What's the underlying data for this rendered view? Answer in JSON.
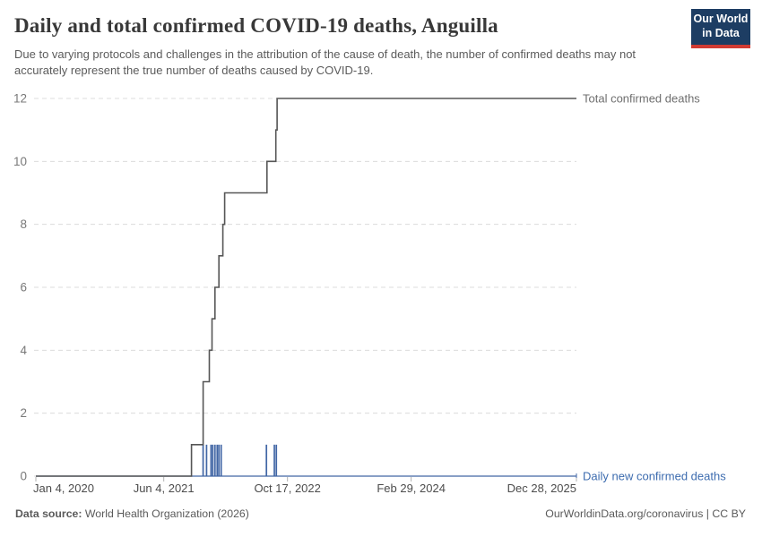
{
  "header": {
    "title": "Daily and total confirmed COVID-19 deaths, Anguilla",
    "subtitle": "Due to varying protocols and challenges in the attribution of the cause of death, the number of confirmed deaths may not accurately represent the true number of deaths caused by COVID-19.",
    "logo": {
      "line1": "Our World",
      "line2": "in Data",
      "bg_color": "#1d3d63",
      "accent_color": "#d13b33"
    }
  },
  "chart_data": {
    "type": "line",
    "x_domain": [
      "2020-01-04",
      "2025-12-28"
    ],
    "ylim": [
      0,
      12
    ],
    "y_ticks": [
      0,
      2,
      4,
      6,
      8,
      10,
      12
    ],
    "grid": "dashed",
    "legend_position": "end-of-line-labels",
    "x_ticks": [
      {
        "label": "Jan 4, 2020",
        "date": "2020-01-04",
        "anchor": "start"
      },
      {
        "label": "Jun 4, 2021",
        "date": "2021-06-04",
        "anchor": "middle"
      },
      {
        "label": "Oct 17, 2022",
        "date": "2022-10-17",
        "anchor": "middle"
      },
      {
        "label": "Feb 29, 2024",
        "date": "2024-02-29",
        "anchor": "middle"
      },
      {
        "label": "Dec 28, 2025",
        "date": "2025-12-28",
        "anchor": "end"
      }
    ],
    "series": [
      {
        "name": "Total confirmed deaths",
        "type": "step",
        "color": "#565656",
        "label_color": "#6e6e6e",
        "points": [
          [
            "2020-01-04",
            0
          ],
          [
            "2021-09-24",
            1
          ],
          [
            "2021-11-10",
            3
          ],
          [
            "2021-12-05",
            4
          ],
          [
            "2021-12-16",
            5
          ],
          [
            "2021-12-28",
            6
          ],
          [
            "2022-01-13",
            7
          ],
          [
            "2022-01-29",
            8
          ],
          [
            "2022-02-05",
            9
          ],
          [
            "2022-07-26",
            10
          ],
          [
            "2022-08-31",
            11
          ],
          [
            "2022-09-05",
            12
          ],
          [
            "2025-12-28",
            12
          ]
        ]
      },
      {
        "name": "Daily new confirmed deaths",
        "type": "spike",
        "color": "#4166a5",
        "label_color": "#3d6caf",
        "spikes": [
          [
            "2021-11-10",
            1
          ],
          [
            "2021-11-24",
            1
          ],
          [
            "2021-12-12",
            1
          ],
          [
            "2021-12-19",
            1
          ],
          [
            "2021-12-28",
            1
          ],
          [
            "2022-01-06",
            1
          ],
          [
            "2022-01-13",
            1
          ],
          [
            "2022-01-22",
            1
          ],
          [
            "2022-07-24",
            1
          ],
          [
            "2022-08-25",
            1
          ],
          [
            "2022-09-02",
            1
          ]
        ]
      }
    ]
  },
  "footer": {
    "source_label": "Data source:",
    "source_text": " World Health Organization (2026)",
    "credit": "OurWorldinData.org/coronavirus | CC BY"
  }
}
